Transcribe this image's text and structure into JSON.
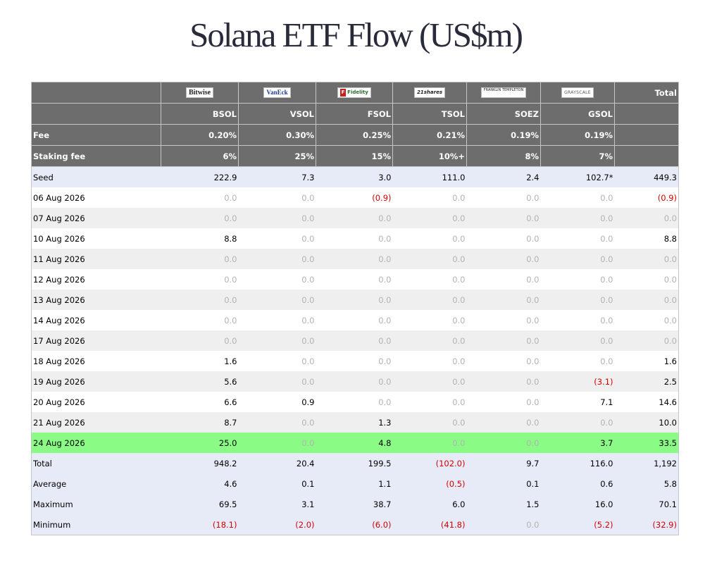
{
  "title": "Solana ETF Flow (US$m)",
  "header": {
    "total_label": "Total",
    "issuers": [
      {
        "logo": "Bitwise",
        "logo_icon": "bitwise-logo",
        "ticker": "BSOL",
        "fee": "0.20%",
        "staking_fee": "6%"
      },
      {
        "logo": "VanEck",
        "logo_icon": "vaneck-logo",
        "ticker": "VSOL",
        "fee": "0.30%",
        "staking_fee": "25%"
      },
      {
        "logo": "Fidelity",
        "logo_icon": "fidelity-logo",
        "ticker": "FSOL",
        "fee": "0.25%",
        "staking_fee": "15%"
      },
      {
        "logo": "21shares",
        "logo_icon": "21shares-logo",
        "ticker": "TSOL",
        "fee": "0.21%",
        "staking_fee": "10%+"
      },
      {
        "logo": "FRANKLIN TEMPLETON",
        "logo_icon": "franklin-templeton-logo",
        "ticker": "SOEZ",
        "fee": "0.19%",
        "staking_fee": "8%"
      },
      {
        "logo": "GRAYSCALE",
        "logo_icon": "grayscale-logo",
        "ticker": "GSOL",
        "fee": "0.19%",
        "staking_fee": "7%"
      }
    ],
    "fee_label": "Fee",
    "staking_fee_label": "Staking fee"
  },
  "colors": {
    "header_bg": "#6d6d6d",
    "seed_summary_bg": "#e7ebf8",
    "highlight_bg": "#8afc86",
    "negative": "#d40000",
    "zero": "#b3b3b3"
  },
  "rows": [
    {
      "label": "Seed",
      "style": "blue",
      "values": [
        "222.9",
        "7.3",
        "3.0",
        "111.0",
        "2.4",
        "102.7*",
        "449.3"
      ]
    },
    {
      "label": "06 Aug 2026",
      "style": "white",
      "values": [
        "0.0",
        "0.0",
        "(0.9)",
        "0.0",
        "0.0",
        "0.0",
        "(0.9)"
      ]
    },
    {
      "label": "07 Aug 2026",
      "style": "gray",
      "values": [
        "0.0",
        "0.0",
        "0.0",
        "0.0",
        "0.0",
        "0.0",
        "0.0"
      ]
    },
    {
      "label": "10 Aug 2026",
      "style": "white",
      "values": [
        "8.8",
        "0.0",
        "0.0",
        "0.0",
        "0.0",
        "0.0",
        "8.8"
      ]
    },
    {
      "label": "11 Aug 2026",
      "style": "gray",
      "values": [
        "0.0",
        "0.0",
        "0.0",
        "0.0",
        "0.0",
        "0.0",
        "0.0"
      ]
    },
    {
      "label": "12 Aug 2026",
      "style": "white",
      "values": [
        "0.0",
        "0.0",
        "0.0",
        "0.0",
        "0.0",
        "0.0",
        "0.0"
      ]
    },
    {
      "label": "13 Aug 2026",
      "style": "gray",
      "values": [
        "0.0",
        "0.0",
        "0.0",
        "0.0",
        "0.0",
        "0.0",
        "0.0"
      ]
    },
    {
      "label": "14 Aug 2026",
      "style": "white",
      "values": [
        "0.0",
        "0.0",
        "0.0",
        "0.0",
        "0.0",
        "0.0",
        "0.0"
      ]
    },
    {
      "label": "17 Aug 2026",
      "style": "gray",
      "values": [
        "0.0",
        "0.0",
        "0.0",
        "0.0",
        "0.0",
        "0.0",
        "0.0"
      ]
    },
    {
      "label": "18 Aug 2026",
      "style": "white",
      "values": [
        "1.6",
        "0.0",
        "0.0",
        "0.0",
        "0.0",
        "0.0",
        "1.6"
      ]
    },
    {
      "label": "19 Aug 2026",
      "style": "gray",
      "values": [
        "5.6",
        "0.0",
        "0.0",
        "0.0",
        "0.0",
        "(3.1)",
        "2.5"
      ]
    },
    {
      "label": "20 Aug 2026",
      "style": "white",
      "values": [
        "6.6",
        "0.9",
        "0.0",
        "0.0",
        "0.0",
        "7.1",
        "14.6"
      ]
    },
    {
      "label": "21 Aug 2026",
      "style": "gray",
      "values": [
        "8.7",
        "0.0",
        "1.3",
        "0.0",
        "0.0",
        "0.0",
        "10.0"
      ]
    },
    {
      "label": "24 Aug 2026",
      "style": "green",
      "values": [
        "25.0",
        "0.0",
        "4.8",
        "0.0",
        "0.0",
        "3.7",
        "33.5"
      ]
    },
    {
      "label": "Total",
      "style": "blue",
      "values": [
        "948.2",
        "20.4",
        "199.5",
        "(102.0)",
        "9.7",
        "116.0",
        "1,192"
      ]
    },
    {
      "label": "Average",
      "style": "blue",
      "values": [
        "4.6",
        "0.1",
        "1.1",
        "(0.5)",
        "0.1",
        "0.6",
        "5.8"
      ]
    },
    {
      "label": "Maximum",
      "style": "blue",
      "values": [
        "69.5",
        "3.1",
        "38.7",
        "6.0",
        "1.5",
        "16.0",
        "70.1"
      ]
    },
    {
      "label": "Minimum",
      "style": "blue",
      "values": [
        "(18.1)",
        "(2.0)",
        "(6.0)",
        "(41.8)",
        "0.0",
        "(5.2)",
        "(32.9)"
      ]
    }
  ]
}
